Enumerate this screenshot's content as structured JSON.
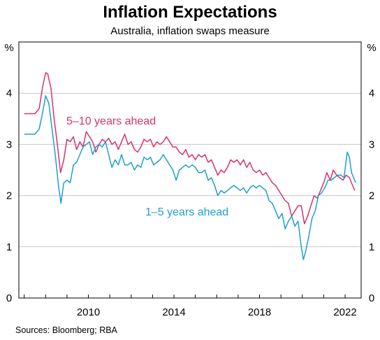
{
  "chart_data": {
    "type": "line",
    "title": "Inflation Expectations",
    "subtitle": "Australia, inflation swaps measure",
    "source": "Sources: Bloomberg; RBA",
    "ylabel_left": "%",
    "ylabel_right": "%",
    "ylim": [
      0,
      5
    ],
    "yticks": [
      "0",
      "1",
      "2",
      "3",
      "4"
    ],
    "xlim": [
      2006.75,
      2022.75
    ],
    "xticks": [
      "2010",
      "2014",
      "2018",
      "2022"
    ],
    "grid": true,
    "series": [
      {
        "name": "5–10 years ahead",
        "color": "#d6336c",
        "points": [
          [
            2007.0,
            3.6
          ],
          [
            2007.5,
            3.6
          ],
          [
            2007.7,
            3.7
          ],
          [
            2007.85,
            4.1
          ],
          [
            2008.0,
            4.4
          ],
          [
            2008.1,
            4.38
          ],
          [
            2008.25,
            4.1
          ],
          [
            2008.4,
            3.5
          ],
          [
            2008.55,
            3.0
          ],
          [
            2008.7,
            2.45
          ],
          [
            2008.85,
            2.7
          ],
          [
            2009.0,
            3.1
          ],
          [
            2009.15,
            3.05
          ],
          [
            2009.3,
            3.15
          ],
          [
            2009.45,
            2.9
          ],
          [
            2009.6,
            3.05
          ],
          [
            2009.75,
            2.95
          ],
          [
            2009.9,
            3.25
          ],
          [
            2010.05,
            3.15
          ],
          [
            2010.2,
            3.05
          ],
          [
            2010.35,
            2.85
          ],
          [
            2010.5,
            3.0
          ],
          [
            2010.65,
            3.1
          ],
          [
            2010.8,
            3.05
          ],
          [
            2010.95,
            3.12
          ],
          [
            2011.1,
            3.0
          ],
          [
            2011.25,
            3.05
          ],
          [
            2011.4,
            2.9
          ],
          [
            2011.55,
            3.05
          ],
          [
            2011.7,
            3.2
          ],
          [
            2011.85,
            3.0
          ],
          [
            2012.0,
            3.05
          ],
          [
            2012.15,
            2.9
          ],
          [
            2012.3,
            2.85
          ],
          [
            2012.45,
            2.95
          ],
          [
            2012.6,
            3.1
          ],
          [
            2012.75,
            3.05
          ],
          [
            2012.9,
            3.1
          ],
          [
            2013.05,
            2.95
          ],
          [
            2013.2,
            3.05
          ],
          [
            2013.35,
            3.0
          ],
          [
            2013.5,
            3.05
          ],
          [
            2013.65,
            3.15
          ],
          [
            2013.8,
            3.05
          ],
          [
            2013.95,
            2.95
          ],
          [
            2014.1,
            2.95
          ],
          [
            2014.25,
            2.85
          ],
          [
            2014.4,
            2.8
          ],
          [
            2014.55,
            2.9
          ],
          [
            2014.7,
            2.75
          ],
          [
            2014.85,
            2.8
          ],
          [
            2015.0,
            2.7
          ],
          [
            2015.15,
            2.8
          ],
          [
            2015.3,
            2.75
          ],
          [
            2015.45,
            2.8
          ],
          [
            2015.6,
            2.65
          ],
          [
            2015.75,
            2.7
          ],
          [
            2015.9,
            2.55
          ],
          [
            2016.05,
            2.4
          ],
          [
            2016.2,
            2.5
          ],
          [
            2016.35,
            2.45
          ],
          [
            2016.5,
            2.55
          ],
          [
            2016.65,
            2.7
          ],
          [
            2016.8,
            2.65
          ],
          [
            2016.95,
            2.7
          ],
          [
            2017.1,
            2.6
          ],
          [
            2017.25,
            2.7
          ],
          [
            2017.4,
            2.55
          ],
          [
            2017.55,
            2.65
          ],
          [
            2017.7,
            2.5
          ],
          [
            2017.85,
            2.45
          ],
          [
            2018.0,
            2.5
          ],
          [
            2018.15,
            2.4
          ],
          [
            2018.3,
            2.45
          ],
          [
            2018.45,
            2.35
          ],
          [
            2018.6,
            2.25
          ],
          [
            2018.75,
            2.2
          ],
          [
            2018.9,
            2.1
          ],
          [
            2019.05,
            2.0
          ],
          [
            2019.2,
            1.9
          ],
          [
            2019.35,
            1.85
          ],
          [
            2019.5,
            1.6
          ],
          [
            2019.65,
            1.7
          ],
          [
            2019.8,
            1.8
          ],
          [
            2019.95,
            1.8
          ],
          [
            2020.1,
            1.45
          ],
          [
            2020.25,
            1.6
          ],
          [
            2020.4,
            1.8
          ],
          [
            2020.55,
            2.0
          ],
          [
            2020.7,
            1.95
          ],
          [
            2020.85,
            2.1
          ],
          [
            2021.0,
            2.25
          ],
          [
            2021.15,
            2.45
          ],
          [
            2021.3,
            2.3
          ],
          [
            2021.45,
            2.5
          ],
          [
            2021.6,
            2.4
          ],
          [
            2021.75,
            2.35
          ],
          [
            2021.9,
            2.3
          ],
          [
            2022.05,
            2.4
          ],
          [
            2022.2,
            2.35
          ],
          [
            2022.35,
            2.2
          ],
          [
            2022.45,
            2.1
          ]
        ]
      },
      {
        "name": "1–5 years ahead",
        "color": "#1e9fd0",
        "points": [
          [
            2007.0,
            3.2
          ],
          [
            2007.5,
            3.2
          ],
          [
            2007.7,
            3.3
          ],
          [
            2007.85,
            3.6
          ],
          [
            2008.0,
            3.95
          ],
          [
            2008.15,
            3.8
          ],
          [
            2008.3,
            3.3
          ],
          [
            2008.45,
            2.8
          ],
          [
            2008.6,
            2.2
          ],
          [
            2008.72,
            1.85
          ],
          [
            2008.85,
            2.25
          ],
          [
            2009.0,
            2.3
          ],
          [
            2009.15,
            2.25
          ],
          [
            2009.3,
            2.6
          ],
          [
            2009.45,
            2.65
          ],
          [
            2009.6,
            2.8
          ],
          [
            2009.75,
            2.95
          ],
          [
            2009.9,
            3.0
          ],
          [
            2010.05,
            3.05
          ],
          [
            2010.2,
            2.8
          ],
          [
            2010.35,
            2.95
          ],
          [
            2010.5,
            3.0
          ],
          [
            2010.65,
            2.95
          ],
          [
            2010.8,
            3.05
          ],
          [
            2010.95,
            2.8
          ],
          [
            2011.1,
            2.55
          ],
          [
            2011.25,
            2.7
          ],
          [
            2011.4,
            2.6
          ],
          [
            2011.55,
            2.8
          ],
          [
            2011.7,
            2.6
          ],
          [
            2011.85,
            2.6
          ],
          [
            2012.0,
            2.65
          ],
          [
            2012.15,
            2.5
          ],
          [
            2012.3,
            2.6
          ],
          [
            2012.45,
            2.55
          ],
          [
            2012.6,
            2.75
          ],
          [
            2012.75,
            2.7
          ],
          [
            2012.9,
            2.75
          ],
          [
            2013.05,
            2.6
          ],
          [
            2013.2,
            2.65
          ],
          [
            2013.35,
            2.7
          ],
          [
            2013.5,
            2.8
          ],
          [
            2013.65,
            2.7
          ],
          [
            2013.8,
            2.6
          ],
          [
            2013.95,
            2.5
          ],
          [
            2014.1,
            2.3
          ],
          [
            2014.25,
            2.5
          ],
          [
            2014.4,
            2.55
          ],
          [
            2014.55,
            2.6
          ],
          [
            2014.7,
            2.55
          ],
          [
            2014.85,
            2.6
          ],
          [
            2015.0,
            2.55
          ],
          [
            2015.15,
            2.45
          ],
          [
            2015.3,
            2.45
          ],
          [
            2015.45,
            2.5
          ],
          [
            2015.6,
            2.3
          ],
          [
            2015.75,
            2.35
          ],
          [
            2015.9,
            2.2
          ],
          [
            2016.05,
            2.0
          ],
          [
            2016.2,
            2.1
          ],
          [
            2016.35,
            2.05
          ],
          [
            2016.5,
            2.1
          ],
          [
            2016.65,
            2.15
          ],
          [
            2016.8,
            2.2
          ],
          [
            2016.95,
            2.15
          ],
          [
            2017.1,
            2.1
          ],
          [
            2017.25,
            2.15
          ],
          [
            2017.4,
            2.05
          ],
          [
            2017.55,
            2.15
          ],
          [
            2017.7,
            2.2
          ],
          [
            2017.85,
            2.15
          ],
          [
            2018.0,
            2.2
          ],
          [
            2018.15,
            2.15
          ],
          [
            2018.3,
            2.1
          ],
          [
            2018.45,
            1.9
          ],
          [
            2018.6,
            1.85
          ],
          [
            2018.75,
            1.7
          ],
          [
            2018.9,
            1.55
          ],
          [
            2019.05,
            1.65
          ],
          [
            2019.2,
            1.35
          ],
          [
            2019.35,
            1.5
          ],
          [
            2019.5,
            1.6
          ],
          [
            2019.65,
            1.4
          ],
          [
            2019.8,
            1.5
          ],
          [
            2019.95,
            1.0
          ],
          [
            2020.05,
            0.75
          ],
          [
            2020.15,
            0.9
          ],
          [
            2020.3,
            1.2
          ],
          [
            2020.45,
            1.55
          ],
          [
            2020.6,
            1.7
          ],
          [
            2020.75,
            2.0
          ],
          [
            2020.9,
            2.05
          ],
          [
            2021.05,
            2.15
          ],
          [
            2021.2,
            2.3
          ],
          [
            2021.35,
            2.3
          ],
          [
            2021.5,
            2.35
          ],
          [
            2021.65,
            2.4
          ],
          [
            2021.8,
            2.4
          ],
          [
            2021.95,
            2.35
          ],
          [
            2022.1,
            2.85
          ],
          [
            2022.2,
            2.75
          ],
          [
            2022.3,
            2.45
          ],
          [
            2022.4,
            2.35
          ],
          [
            2022.5,
            2.25
          ]
        ]
      }
    ],
    "annotations": [
      {
        "text": "5–10 years ahead",
        "series": 0
      },
      {
        "text": "1–5 years ahead",
        "series": 1
      }
    ]
  }
}
